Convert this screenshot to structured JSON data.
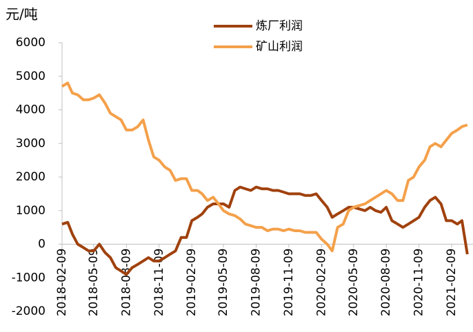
{
  "chart_data": {
    "type": "line",
    "y_label": "元/吨",
    "x": [
      "2018-02-09",
      "2018-02-25",
      "2018-03-10",
      "2018-03-25",
      "2018-04-10",
      "2018-04-25",
      "2018-05-09",
      "2018-05-25",
      "2018-06-10",
      "2018-06-25",
      "2018-07-10",
      "2018-07-25",
      "2018-08-09",
      "2018-08-25",
      "2018-09-10",
      "2018-09-25",
      "2018-10-10",
      "2018-10-25",
      "2018-11-09",
      "2018-11-25",
      "2018-12-10",
      "2018-12-25",
      "2019-01-10",
      "2019-01-25",
      "2019-02-09",
      "2019-02-25",
      "2019-03-10",
      "2019-03-25",
      "2019-04-10",
      "2019-04-25",
      "2019-05-09",
      "2019-05-25",
      "2019-06-10",
      "2019-06-25",
      "2019-07-10",
      "2019-07-25",
      "2019-08-09",
      "2019-08-25",
      "2019-09-10",
      "2019-09-25",
      "2019-10-10",
      "2019-10-25",
      "2019-11-09",
      "2019-11-25",
      "2019-12-10",
      "2019-12-25",
      "2020-01-10",
      "2020-01-25",
      "2020-02-09",
      "2020-02-25",
      "2020-03-10",
      "2020-03-25",
      "2020-04-10",
      "2020-04-25",
      "2020-05-09",
      "2020-05-25",
      "2020-06-10",
      "2020-06-25",
      "2020-07-10",
      "2020-07-25",
      "2020-08-09",
      "2020-08-25",
      "2020-09-10",
      "2020-09-25",
      "2020-10-10",
      "2020-10-25",
      "2020-11-09",
      "2020-11-25",
      "2020-12-10",
      "2020-12-25",
      "2021-01-10",
      "2021-01-25",
      "2021-02-09",
      "2021-02-25",
      "2021-03-10",
      "2021-03-25"
    ],
    "series": [
      {
        "name": "炼厂利润",
        "color": "#a0410d",
        "values": [
          600,
          650,
          300,
          0,
          -100,
          -200,
          -200,
          0,
          -250,
          -400,
          -700,
          -800,
          -900,
          -700,
          -600,
          -500,
          -400,
          -500,
          -500,
          -400,
          -300,
          -200,
          200,
          200,
          700,
          800,
          900,
          1100,
          1200,
          1200,
          1200,
          1100,
          1600,
          1700,
          1650,
          1600,
          1700,
          1650,
          1650,
          1600,
          1600,
          1550,
          1500,
          1500,
          1500,
          1450,
          1450,
          1500,
          1300,
          1100,
          800,
          900,
          1000,
          1100,
          1100,
          1050,
          1000,
          1100,
          1000,
          950,
          1100,
          700,
          600,
          500,
          600,
          700,
          800,
          1100,
          1300,
          1400,
          1200,
          700,
          700,
          600,
          700,
          -300
        ]
      },
      {
        "name": "矿山利润",
        "color": "#f4a04a",
        "values": [
          4700,
          4800,
          4500,
          4450,
          4300,
          4300,
          4350,
          4450,
          4200,
          3900,
          3800,
          3700,
          3400,
          3400,
          3500,
          3700,
          3100,
          2600,
          2500,
          2300,
          2200,
          1900,
          1950,
          1950,
          1600,
          1600,
          1500,
          1300,
          1400,
          1200,
          1000,
          900,
          850,
          750,
          600,
          550,
          500,
          500,
          400,
          450,
          450,
          400,
          450,
          400,
          400,
          350,
          350,
          350,
          150,
          0,
          -200,
          500,
          600,
          1000,
          1100,
          1150,
          1200,
          1300,
          1400,
          1500,
          1600,
          1500,
          1300,
          1300,
          1900,
          2000,
          2300,
          2500,
          2900,
          3000,
          2900,
          3100,
          3300,
          3400,
          3500,
          3550
        ]
      }
    ],
    "xlim": [
      "2018-02-09",
      "2021-04-10"
    ],
    "xticks": [
      "2018-02-09",
      "2018-05-09",
      "2018-08-09",
      "2018-11-09",
      "2019-02-09",
      "2019-05-09",
      "2019-08-09",
      "2019-11-09",
      "2020-02-09",
      "2020-05-09",
      "2020-08-09",
      "2020-11-09",
      "2021-02-09"
    ],
    "ylim": [
      -2000,
      6000
    ],
    "yticks": [
      -2000,
      -1000,
      0,
      1000,
      2000,
      3000,
      4000,
      5000,
      6000
    ],
    "legend": "top"
  }
}
